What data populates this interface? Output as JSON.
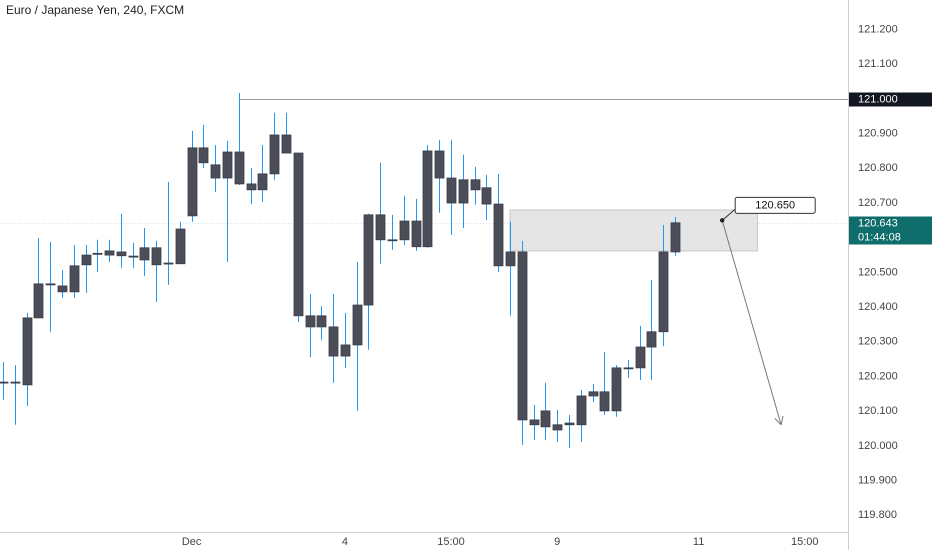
{
  "chart_data": {
    "type": "candlestick",
    "title": "Euro / Japanese Yen, 240, FXCM",
    "categories": [
      null,
      null,
      null,
      null,
      null,
      null,
      null,
      null,
      null,
      null,
      null,
      null,
      null,
      null,
      null,
      null,
      "Dec",
      null,
      null,
      null,
      null,
      null,
      null,
      null,
      null,
      null,
      null,
      null,
      null,
      "4",
      null,
      null,
      null,
      null,
      null,
      null,
      null,
      null,
      "15:00",
      null,
      null,
      null,
      null,
      null,
      null,
      null,
      null,
      "9",
      null,
      null,
      null,
      null,
      null,
      null,
      null,
      null,
      null,
      null,
      null,
      "11",
      null,
      null,
      null,
      null,
      null,
      null,
      null,
      null,
      "15:00",
      null,
      null,
      null
    ],
    "candles": [
      [
        120.182,
        120.242,
        120.133,
        120.184
      ],
      [
        120.184,
        120.233,
        120.061,
        120.182
      ],
      [
        120.176,
        120.383,
        120.115,
        120.369
      ],
      [
        120.369,
        120.599,
        120.369,
        120.467
      ],
      [
        120.467,
        120.588,
        120.329,
        120.464
      ],
      [
        120.461,
        120.507,
        120.427,
        120.444
      ],
      [
        120.444,
        120.579,
        120.427,
        120.519
      ],
      [
        120.522,
        120.579,
        120.441,
        120.55
      ],
      [
        120.553,
        120.594,
        120.501,
        120.555
      ],
      [
        120.55,
        120.594,
        120.53,
        120.562
      ],
      [
        120.559,
        120.669,
        120.513,
        120.548
      ],
      [
        120.545,
        120.585,
        120.513,
        120.547
      ],
      [
        120.536,
        120.628,
        120.49,
        120.571
      ],
      [
        120.571,
        120.591,
        120.415,
        120.522
      ],
      [
        120.525,
        120.761,
        120.464,
        120.527
      ],
      [
        120.525,
        120.646,
        120.525,
        120.625
      ],
      [
        120.663,
        120.908,
        120.646,
        120.859
      ],
      [
        120.859,
        120.925,
        120.801,
        120.816
      ],
      [
        120.81,
        120.867,
        120.732,
        120.772
      ],
      [
        120.772,
        120.879,
        120.53,
        120.847
      ],
      [
        120.847,
        121.017,
        120.752,
        120.755
      ],
      [
        120.755,
        120.801,
        120.697,
        120.738
      ],
      [
        120.738,
        120.867,
        120.703,
        120.784
      ],
      [
        120.784,
        120.96,
        120.767,
        120.896
      ],
      [
        120.896,
        120.96,
        120.844,
        120.844
      ],
      [
        120.844,
        120.844,
        120.357,
        120.375
      ],
      [
        120.375,
        120.438,
        120.256,
        120.343
      ],
      [
        120.343,
        120.403,
        120.305,
        120.375
      ],
      [
        120.343,
        120.438,
        120.182,
        120.259
      ],
      [
        120.259,
        120.383,
        120.225,
        120.291
      ],
      [
        120.291,
        120.53,
        120.101,
        120.406
      ],
      [
        120.406,
        120.669,
        120.277,
        120.666
      ],
      [
        120.666,
        120.816,
        120.525,
        120.594
      ],
      [
        120.594,
        120.666,
        120.565,
        120.592
      ],
      [
        120.594,
        120.721,
        120.579,
        120.648
      ],
      [
        120.648,
        120.712,
        120.562,
        120.574
      ],
      [
        120.574,
        120.867,
        120.571,
        120.85
      ],
      [
        120.85,
        120.882,
        120.672,
        120.772
      ],
      [
        120.772,
        120.882,
        120.608,
        120.7
      ],
      [
        120.7,
        120.839,
        120.628,
        120.767
      ],
      [
        120.767,
        120.804,
        120.695,
        120.738
      ],
      [
        120.744,
        120.781,
        120.651,
        120.697
      ],
      [
        120.697,
        120.784,
        120.501,
        120.519
      ],
      [
        120.519,
        120.646,
        120.375,
        120.559
      ],
      [
        120.559,
        120.591,
        120.003,
        120.075
      ],
      [
        120.075,
        120.118,
        120.017,
        120.061
      ],
      [
        120.055,
        120.182,
        120.017,
        120.101
      ],
      [
        120.061,
        120.104,
        120.012,
        120.046
      ],
      [
        120.061,
        120.089,
        119.994,
        120.066
      ],
      [
        120.061,
        120.161,
        120.012,
        120.144
      ],
      [
        120.144,
        120.179,
        120.127,
        120.156
      ],
      [
        120.156,
        120.271,
        120.089,
        120.101
      ],
      [
        120.101,
        120.233,
        120.084,
        120.225
      ],
      [
        120.223,
        120.248,
        120.196,
        120.225
      ],
      [
        120.225,
        120.346,
        120.19,
        120.285
      ],
      [
        120.285,
        120.478,
        120.19,
        120.329
      ],
      [
        120.329,
        120.637,
        120.288,
        120.559
      ],
      [
        120.559,
        120.66,
        120.548,
        120.643
      ],
      null,
      null,
      null,
      null,
      null,
      null,
      null,
      null,
      null,
      null,
      null,
      null,
      null,
      null
    ],
    "body_color": "#4b4d58",
    "wick_color": "#2196f3",
    "ylim": [
      119.752,
      121.285
    ],
    "yticks": [
      {
        "value": 121.2,
        "label": "121.200"
      },
      {
        "value": 121.1,
        "label": "121.100"
      },
      {
        "value": 120.9,
        "label": "120.900"
      },
      {
        "value": 120.8,
        "label": "120.800"
      },
      {
        "value": 120.7,
        "label": "120.700"
      },
      {
        "value": 120.5,
        "label": "120.500"
      },
      {
        "value": 120.4,
        "label": "120.400"
      },
      {
        "value": 120.3,
        "label": "120.300"
      },
      {
        "value": 120.2,
        "label": "120.200"
      },
      {
        "value": 120.1,
        "label": "120.100"
      },
      {
        "value": 120,
        "label": "120.000"
      },
      {
        "value": 119.9,
        "label": "119.900"
      },
      {
        "value": 119.8,
        "label": "119.800"
      }
    ],
    "horizontal_line": {
      "value": 121,
      "label": "121.000"
    },
    "last_price": 120.643,
    "countdown": "01:44:08",
    "zone": [
      120.68,
      120.562
    ],
    "projection": {
      "from": {
        "value": 120.65,
        "label": "120.650"
      },
      "to": 120.061
    }
  }
}
